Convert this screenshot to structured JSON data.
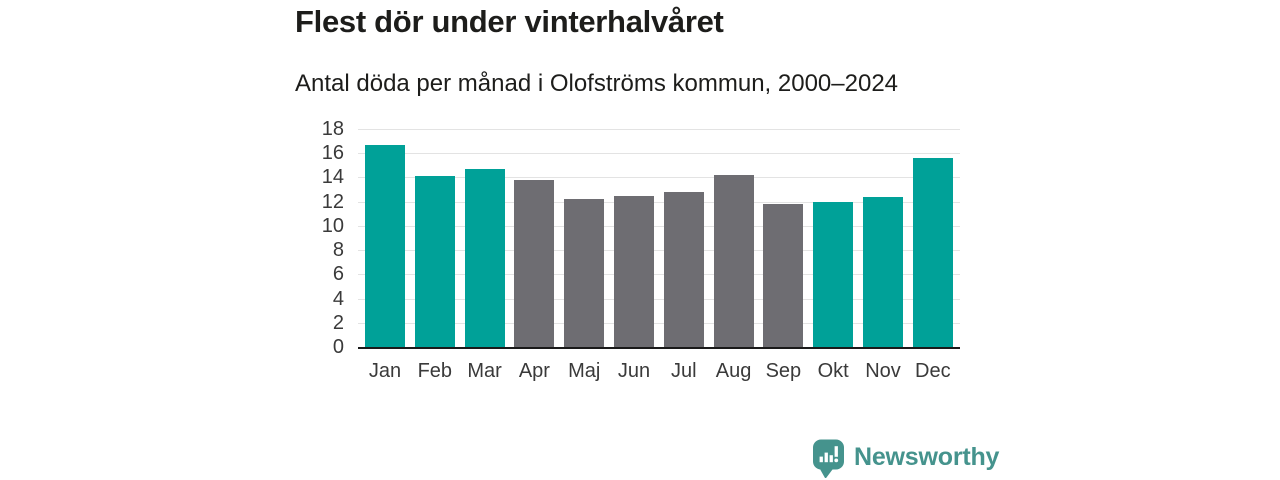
{
  "chart_data": {
    "type": "bar",
    "title": "Flest dör under vinterhalvåret",
    "subtitle": "Antal döda per månad i Olofströms kommun, 2000–2024",
    "categories": [
      "Jan",
      "Feb",
      "Mar",
      "Apr",
      "Maj",
      "Jun",
      "Jul",
      "Aug",
      "Sep",
      "Okt",
      "Nov",
      "Dec"
    ],
    "values": [
      16.7,
      14.1,
      14.7,
      13.8,
      12.2,
      12.5,
      12.8,
      14.2,
      11.8,
      12.0,
      12.4,
      15.6
    ],
    "ylim": [
      0,
      18
    ],
    "yticks": [
      0,
      2,
      4,
      6,
      8,
      10,
      12,
      14,
      16,
      18
    ],
    "xlabel": "",
    "ylabel": "",
    "grid": "horizontal",
    "legend": "none",
    "bar_palette": {
      "winter_highlight": "#00a198",
      "summer_base": "#6e6d72"
    },
    "bar_color_keys": [
      "winter_highlight",
      "winter_highlight",
      "winter_highlight",
      "summer_base",
      "summer_base",
      "summer_base",
      "summer_base",
      "summer_base",
      "summer_base",
      "winter_highlight",
      "winter_highlight",
      "winter_highlight"
    ]
  },
  "brand": {
    "name": "Newsworthy",
    "icon": "bar-chart-speech-bubble-icon",
    "color": "#45938d"
  },
  "colors": {
    "background": "#ffffff",
    "title_text": "#1d1d1b",
    "tick_text": "#3a3a3a",
    "axis_line": "#1a1a1a",
    "gridline": "#e3e3e3"
  }
}
